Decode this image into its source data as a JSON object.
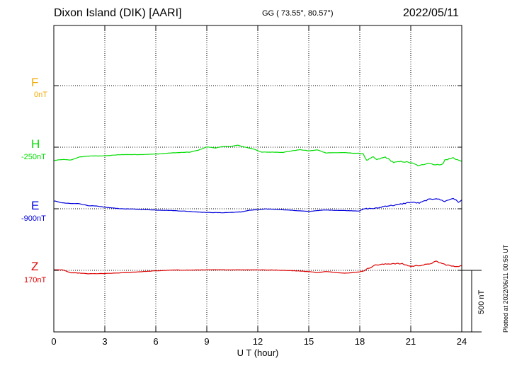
{
  "header": {
    "station": "Dixon Island (DIK)  [AARI]",
    "coords": "GG ( 73.55°,  80.57°)",
    "date": "2022/05/11"
  },
  "plotted_note": "Plotted at 2022/06/11 00:55 UT",
  "scale_label": "500 nT",
  "chart_data": {
    "type": "line",
    "xlabel": "U T (hour)",
    "xlim": [
      0,
      24
    ],
    "xticks": [
      "0",
      "3",
      "6",
      "9",
      "12",
      "15",
      "18",
      "21",
      "24"
    ],
    "grid": true,
    "series": [
      {
        "name": "F",
        "baseline_label": "0nT",
        "color": "#f4a700",
        "values": []
      },
      {
        "name": "H",
        "baseline_label": "-250nT",
        "color": "#00dd00",
        "values": [
          [
            0,
            -108
          ],
          [
            0.5,
            -100
          ],
          [
            1,
            -104
          ],
          [
            1.5,
            -80
          ],
          [
            2,
            -72
          ],
          [
            3,
            -70
          ],
          [
            4,
            -60
          ],
          [
            5,
            -60
          ],
          [
            6,
            -56
          ],
          [
            7,
            -46
          ],
          [
            8,
            -40
          ],
          [
            8.5,
            -24
          ],
          [
            9,
            2
          ],
          [
            9.5,
            -6
          ],
          [
            10,
            6
          ],
          [
            10.5,
            8
          ],
          [
            10.8,
            16
          ],
          [
            11.2,
            2
          ],
          [
            11.8,
            -16
          ],
          [
            12.2,
            -40
          ],
          [
            13,
            -40
          ],
          [
            13.5,
            -42
          ],
          [
            14,
            -30
          ],
          [
            14.5,
            -20
          ],
          [
            15,
            -30
          ],
          [
            15.5,
            -22
          ],
          [
            16,
            -46
          ],
          [
            17,
            -44
          ],
          [
            18.2,
            -52
          ],
          [
            18.4,
            -108
          ],
          [
            18.8,
            -80
          ],
          [
            19,
            -102
          ],
          [
            19.5,
            -80
          ],
          [
            20,
            -124
          ],
          [
            20.5,
            -116
          ],
          [
            21,
            -126
          ],
          [
            21.5,
            -152
          ],
          [
            22,
            -128
          ],
          [
            22.5,
            -144
          ],
          [
            22.9,
            -136
          ],
          [
            23,
            -104
          ],
          [
            23.5,
            -86
          ],
          [
            23.9,
            -112
          ],
          [
            24,
            -112
          ]
        ]
      },
      {
        "name": "E",
        "baseline_label": "-900nT",
        "color": "#0000dd",
        "values": [
          [
            0,
            64
          ],
          [
            0.5,
            48
          ],
          [
            1,
            42
          ],
          [
            1.5,
            42
          ],
          [
            2,
            26
          ],
          [
            2.5,
            22
          ],
          [
            3,
            12
          ],
          [
            4,
            0
          ],
          [
            5,
            -4
          ],
          [
            6,
            -10
          ],
          [
            7,
            -14
          ],
          [
            8,
            -22
          ],
          [
            9,
            -30
          ],
          [
            10,
            -32
          ],
          [
            11,
            -26
          ],
          [
            11.5,
            -12
          ],
          [
            12,
            -8
          ],
          [
            12.5,
            -2
          ],
          [
            13,
            -4
          ],
          [
            14,
            -12
          ],
          [
            15,
            -22
          ],
          [
            15.5,
            -14
          ],
          [
            16,
            -10
          ],
          [
            17,
            -14
          ],
          [
            18,
            -18
          ],
          [
            18.3,
            0
          ],
          [
            19,
            4
          ],
          [
            19.5,
            22
          ],
          [
            20,
            28
          ],
          [
            20.5,
            40
          ],
          [
            21,
            54
          ],
          [
            21.5,
            46
          ],
          [
            22,
            74
          ],
          [
            22.5,
            84
          ],
          [
            23,
            60
          ],
          [
            23.5,
            86
          ],
          [
            23.8,
            54
          ],
          [
            24,
            72
          ]
        ]
      },
      {
        "name": "Z",
        "baseline_label": "170nT",
        "color": "#dd0000",
        "values": [
          [
            0,
            4
          ],
          [
            0.5,
            4
          ],
          [
            1,
            -20
          ],
          [
            1.5,
            -22
          ],
          [
            2,
            -28
          ],
          [
            3,
            -26
          ],
          [
            4,
            -20
          ],
          [
            5,
            -12
          ],
          [
            6,
            -4
          ],
          [
            7,
            2
          ],
          [
            8,
            2
          ],
          [
            9,
            4
          ],
          [
            10,
            4
          ],
          [
            11,
            4
          ],
          [
            12,
            4
          ],
          [
            13,
            2
          ],
          [
            14,
            -2
          ],
          [
            15,
            -10
          ],
          [
            15.5,
            -18
          ],
          [
            16,
            -10
          ],
          [
            17,
            -22
          ],
          [
            17.5,
            -20
          ],
          [
            18,
            -12
          ],
          [
            18.3,
            0
          ],
          [
            18.8,
            38
          ],
          [
            19,
            44
          ],
          [
            20,
            56
          ],
          [
            20.5,
            52
          ],
          [
            21,
            32
          ],
          [
            21.5,
            40
          ],
          [
            22,
            48
          ],
          [
            22.5,
            72
          ],
          [
            23,
            48
          ],
          [
            23.5,
            32
          ],
          [
            24,
            36
          ]
        ]
      }
    ],
    "scale_bar_nT": 500
  }
}
